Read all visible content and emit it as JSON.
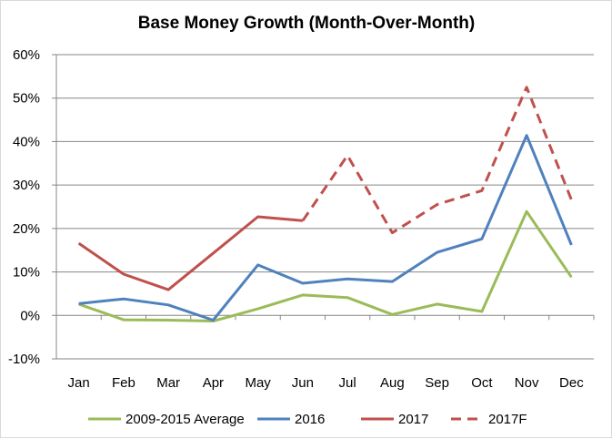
{
  "chart_data": {
    "type": "line",
    "title": "Base Money Growth (Month-Over-Month)",
    "xlabel": "",
    "ylabel": "",
    "categories": [
      "Jan",
      "Feb",
      "Mar",
      "Apr",
      "May",
      "Jun",
      "Jul",
      "Aug",
      "Sep",
      "Oct",
      "Nov",
      "Dec"
    ],
    "ylim": [
      -10,
      60
    ],
    "yticks": [
      -10,
      0,
      10,
      20,
      30,
      40,
      50,
      60
    ],
    "ytick_labels": [
      "-10%",
      "0%",
      "10%",
      "20%",
      "30%",
      "40%",
      "50%",
      "60%"
    ],
    "grid": "horizontal",
    "legend_position": "bottom",
    "series": [
      {
        "name": "2009-2015 Average",
        "color": "#9bbb59",
        "dash": "solid",
        "values": [
          2.6,
          -1.0,
          -1.1,
          -1.3,
          1.5,
          4.7,
          4.1,
          0.2,
          2.6,
          0.9,
          23.9,
          8.8
        ]
      },
      {
        "name": "2016",
        "color": "#4f81bd",
        "dash": "solid",
        "values": [
          2.7,
          3.8,
          2.4,
          -1.1,
          11.6,
          7.4,
          8.4,
          7.8,
          14.5,
          17.6,
          41.4,
          16.2
        ]
      },
      {
        "name": "2017",
        "color": "#c0504d",
        "dash": "solid",
        "values": [
          16.6,
          9.5,
          5.9,
          14.3,
          22.7,
          21.8,
          null,
          null,
          null,
          null,
          null,
          null
        ]
      },
      {
        "name": "2017F",
        "color": "#c0504d",
        "dash": "dashed",
        "values": [
          null,
          null,
          null,
          null,
          null,
          21.8,
          36.8,
          19.0,
          25.5,
          28.7,
          52.5,
          26.6
        ]
      }
    ]
  }
}
